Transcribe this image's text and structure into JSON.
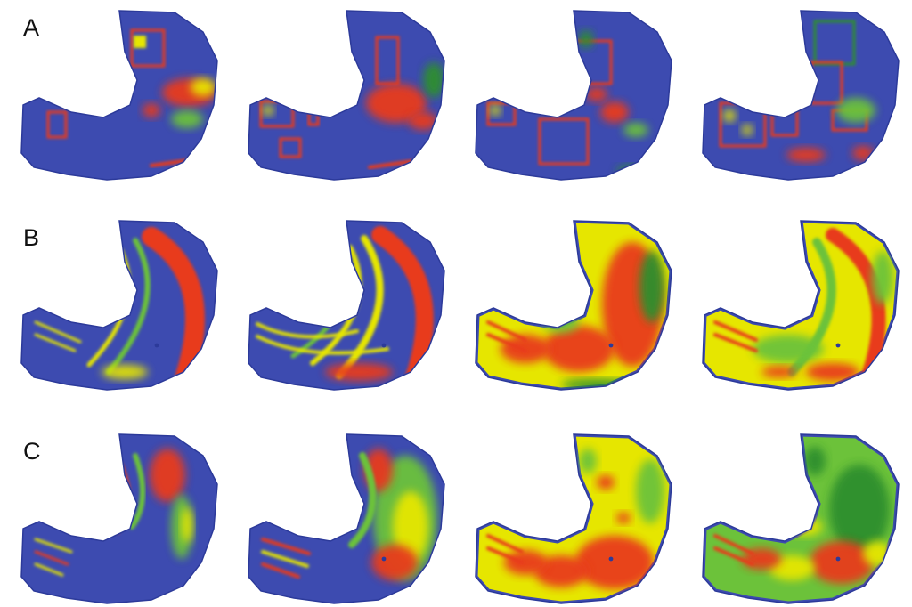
{
  "rows": [
    {
      "label": "A",
      "panel_count": 4
    },
    {
      "label": "B",
      "panel_count": 4
    },
    {
      "label": "C",
      "panel_count": 4
    }
  ],
  "colors": {
    "background": "#3d4bb0",
    "low": "#2f8f2f",
    "mid_green": "#6cc23a",
    "mid": "#e6e600",
    "high": "#e83a1c",
    "outline": "#2c3a9a"
  }
}
